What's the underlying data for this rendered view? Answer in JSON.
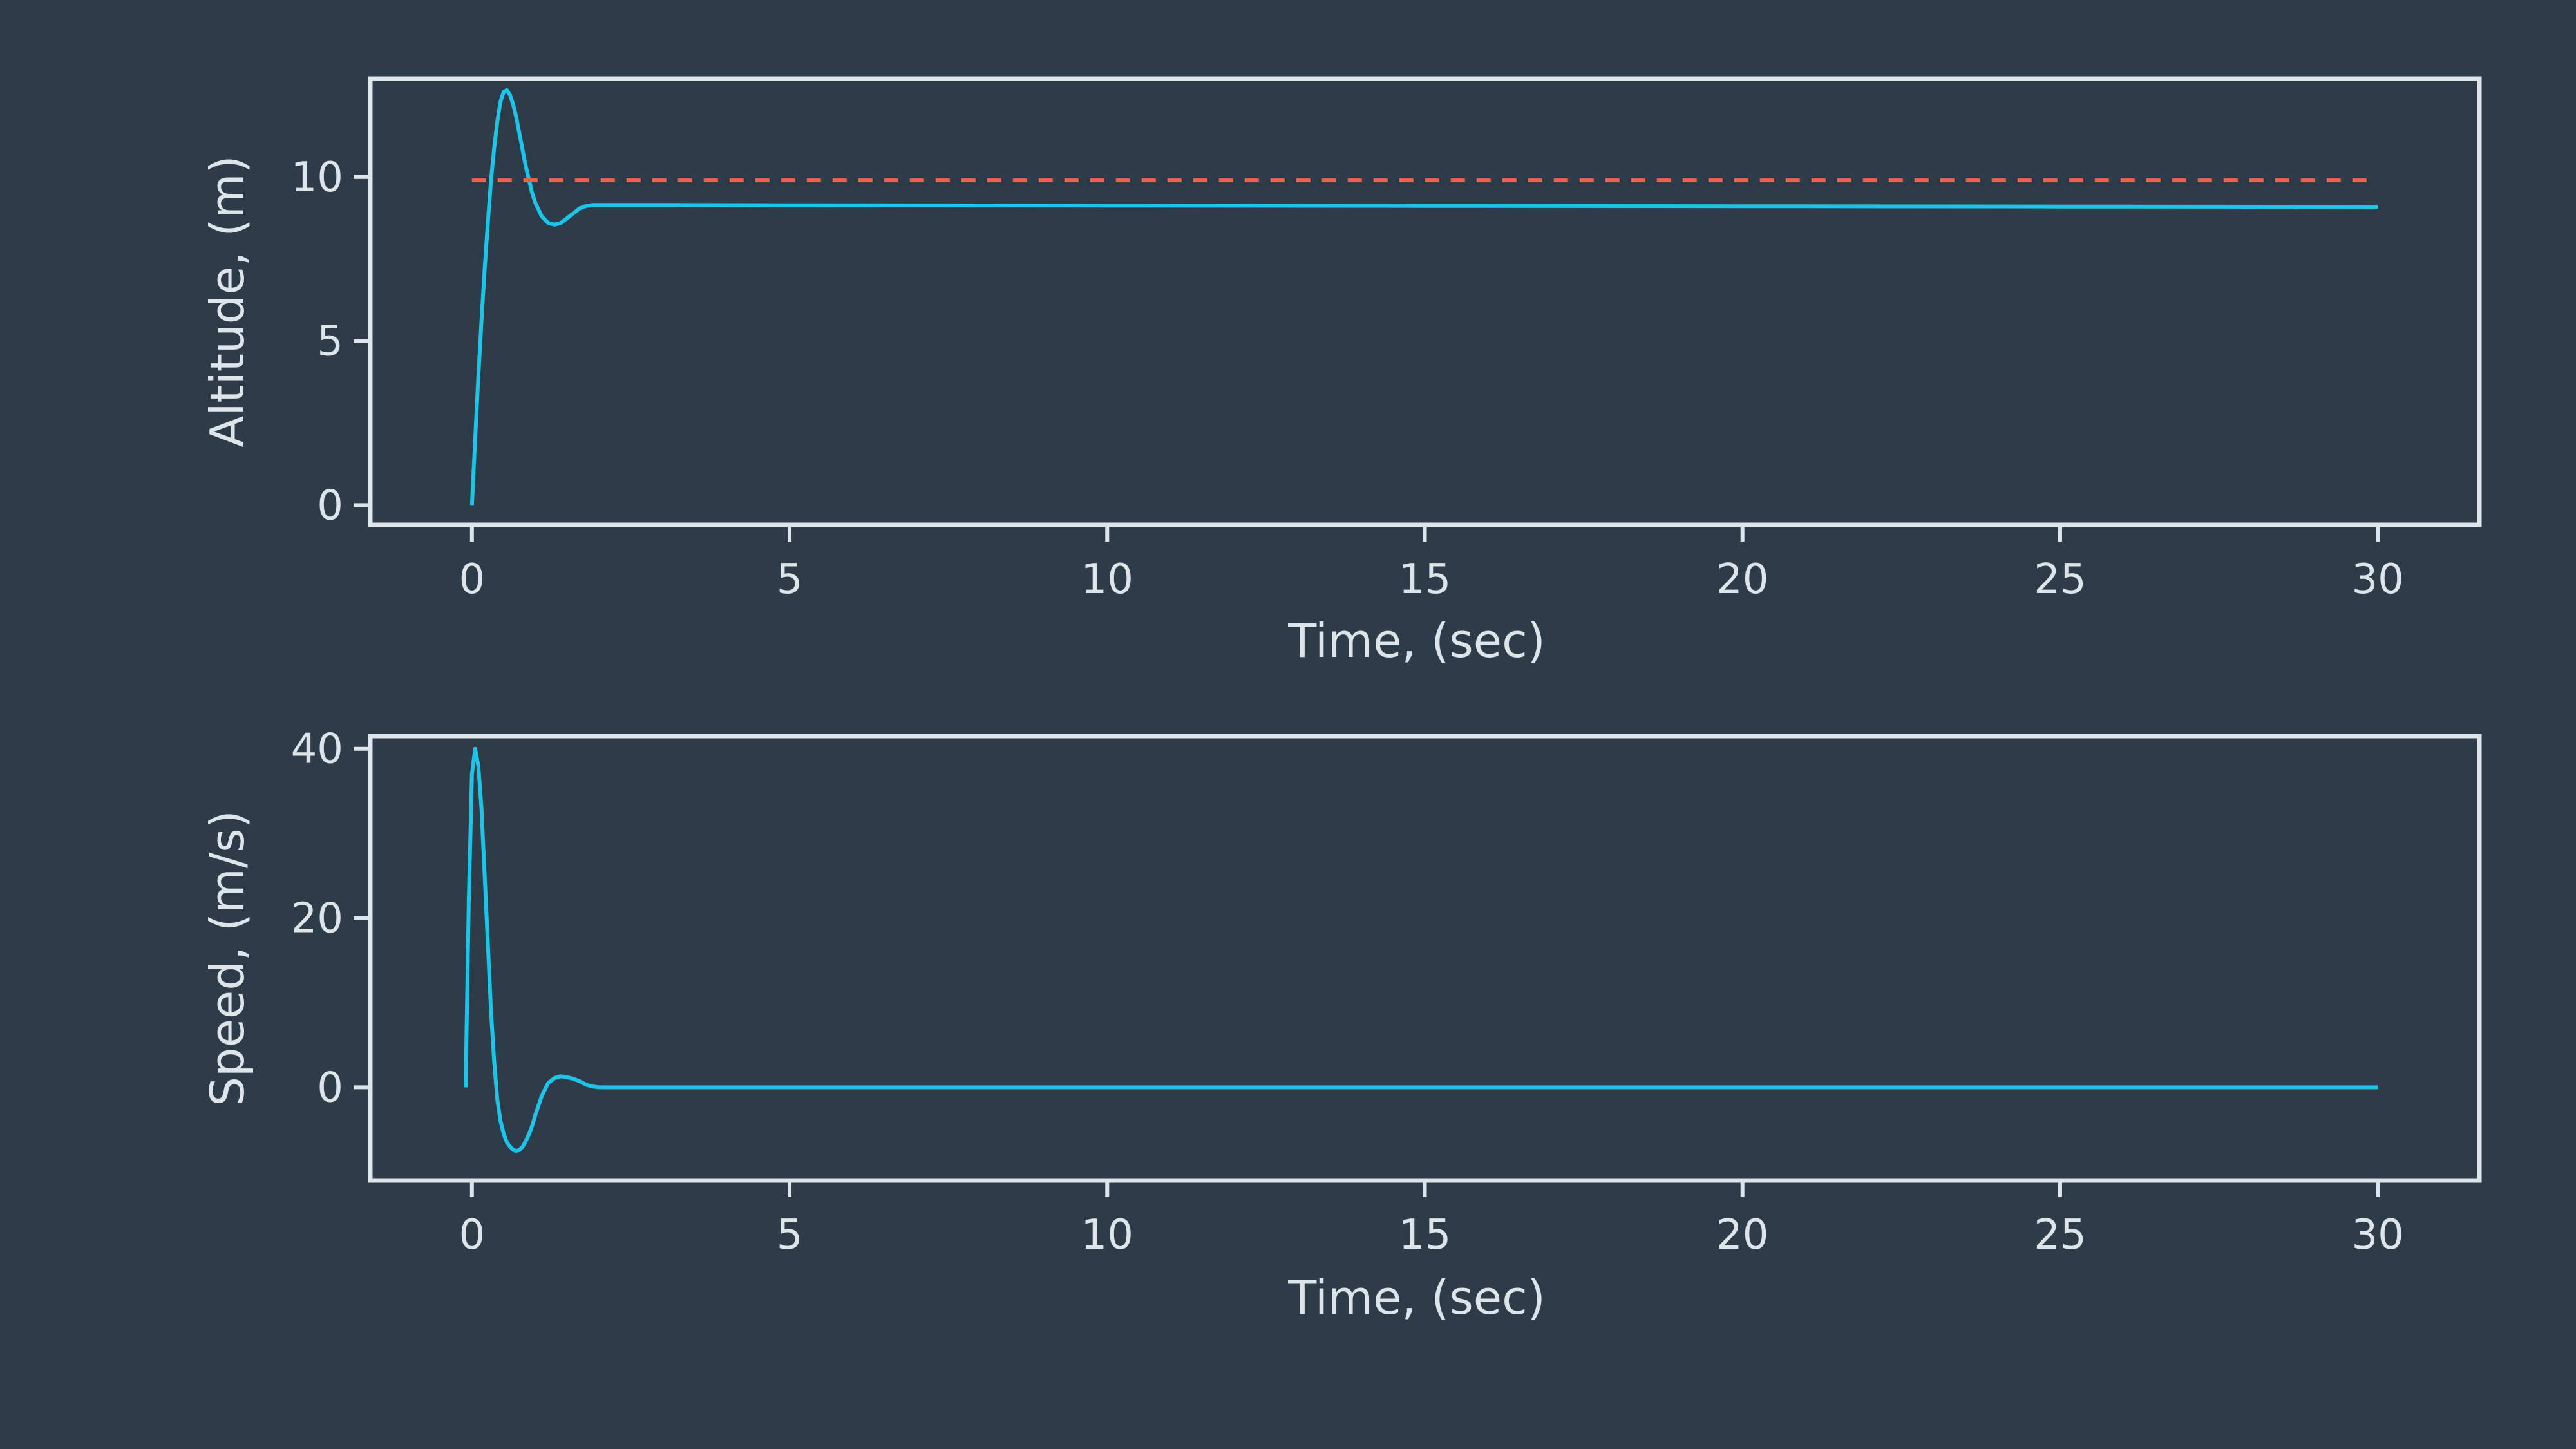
{
  "colors": {
    "background": "#2e3c4a",
    "axes": "#dde4ea",
    "text": "#dde4ea",
    "series_actual": "#1ec3e8",
    "series_reference": "#e8604c"
  },
  "chart_data": [
    {
      "type": "line",
      "xlabel": "Time, (sec)",
      "ylabel": "Altitude, (m)",
      "xlim": [
        -1.6,
        31.6
      ],
      "ylim": [
        -0.6,
        13.0
      ],
      "xticks": [
        0,
        5,
        10,
        15,
        20,
        25,
        30
      ],
      "yticks": [
        0,
        5,
        10
      ],
      "grid": false,
      "series": [
        {
          "style": "solid",
          "color": "#1ec3e8",
          "x": [
            0,
            0.05,
            0.1,
            0.15,
            0.2,
            0.25,
            0.3,
            0.35,
            0.4,
            0.45,
            0.5,
            0.55,
            0.6,
            0.65,
            0.7,
            0.75,
            0.8,
            0.85,
            0.9,
            0.95,
            1.0,
            1.1,
            1.2,
            1.3,
            1.4,
            1.5,
            1.6,
            1.7,
            1.8,
            1.9,
            2.0,
            2.2,
            2.5,
            3.0,
            5,
            10,
            15,
            20,
            25,
            30
          ],
          "y": [
            0,
            2.0,
            3.9,
            5.6,
            7.2,
            8.6,
            9.9,
            10.9,
            11.7,
            12.3,
            12.6,
            12.65,
            12.5,
            12.2,
            11.8,
            11.3,
            10.8,
            10.3,
            9.9,
            9.5,
            9.2,
            8.8,
            8.6,
            8.55,
            8.6,
            8.75,
            8.9,
            9.05,
            9.12,
            9.15,
            9.15,
            9.15,
            9.15,
            9.15,
            9.14,
            9.13,
            9.12,
            9.11,
            9.1,
            9.09
          ]
        },
        {
          "style": "dashed",
          "color": "#e8604c",
          "x": [
            0,
            30
          ],
          "y": [
            9.9,
            9.9
          ]
        }
      ]
    },
    {
      "type": "line",
      "xlabel": "Time, (sec)",
      "ylabel": "Speed, (m/s)",
      "xlim": [
        -1.6,
        31.6
      ],
      "ylim": [
        -11,
        41.5
      ],
      "xticks": [
        0,
        5,
        10,
        15,
        20,
        25,
        30
      ],
      "yticks": [
        0,
        20,
        40
      ],
      "grid": false,
      "series": [
        {
          "style": "solid",
          "color": "#1ec3e8",
          "x": [
            -0.1,
            -0.05,
            0,
            0.05,
            0.1,
            0.15,
            0.2,
            0.25,
            0.3,
            0.35,
            0.4,
            0.45,
            0.5,
            0.55,
            0.6,
            0.65,
            0.7,
            0.75,
            0.8,
            0.85,
            0.9,
            0.95,
            1.0,
            1.1,
            1.2,
            1.3,
            1.4,
            1.5,
            1.6,
            1.7,
            1.8,
            1.9,
            2.0,
            2.1,
            2.2,
            2.4,
            2.6,
            3.0,
            5,
            10,
            15,
            20,
            25,
            30
          ],
          "y": [
            0,
            22,
            37,
            40,
            38,
            33,
            25,
            17,
            9,
            3,
            -1.5,
            -4,
            -5.5,
            -6.5,
            -7,
            -7.4,
            -7.5,
            -7.4,
            -7.0,
            -6.3,
            -5.5,
            -4.5,
            -3.2,
            -1,
            0.5,
            1.1,
            1.3,
            1.2,
            1.0,
            0.7,
            0.3,
            0.1,
            0,
            0,
            0,
            0,
            0,
            0,
            0,
            0,
            0,
            0,
            0,
            0
          ]
        }
      ]
    }
  ]
}
